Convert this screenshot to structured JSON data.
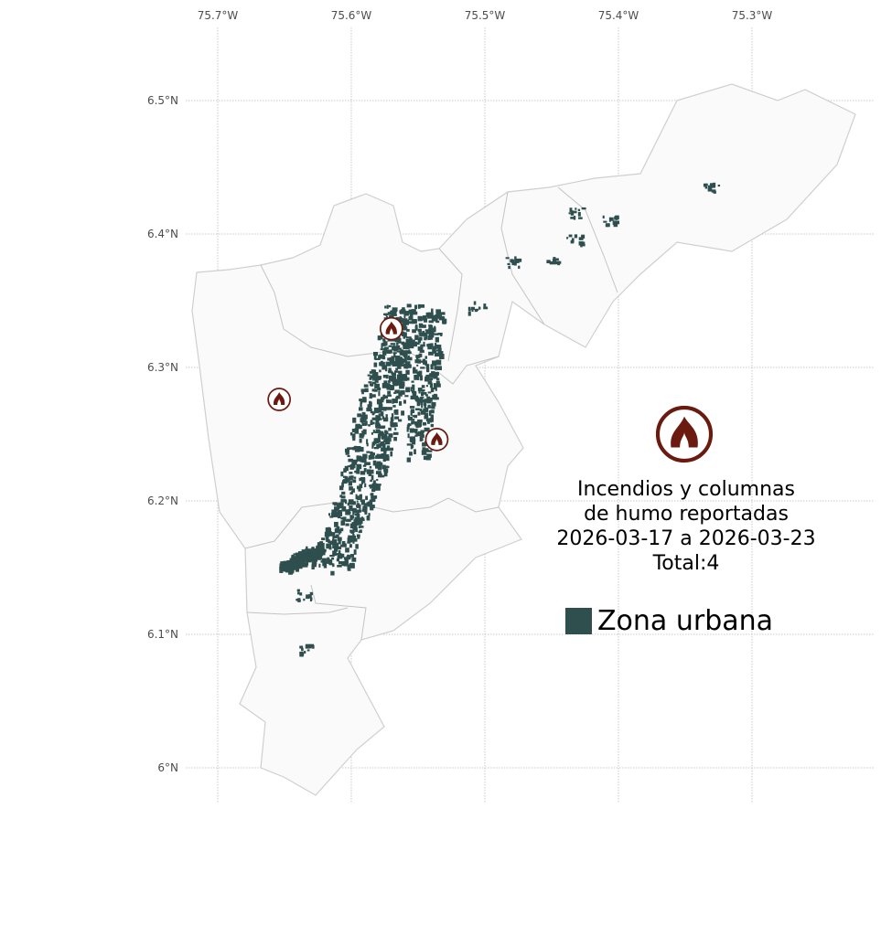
{
  "chart_data": {
    "type": "map",
    "axes": {
      "x_ticks": [
        "75.7°W",
        "75.6°W",
        "75.5°W",
        "75.4°W",
        "75.3°W"
      ],
      "x_values": [
        -75.7,
        -75.6,
        -75.5,
        -75.4,
        -75.3
      ],
      "y_ticks": [
        "6.5°N",
        "6.4°N",
        "6.3°N",
        "6.2°N",
        "6.1°N",
        "6°N"
      ],
      "y_values": [
        6.5,
        6.4,
        6.3,
        6.2,
        6.1,
        6.0
      ],
      "grid": true
    },
    "title_lines": [
      "Incendios y columnas",
      "de humo reportadas",
      "2026-03-17 a 2026-03-23",
      "Total:4"
    ],
    "fire_points": [
      {
        "lon": -75.57,
        "lat": 6.329
      },
      {
        "lon": -75.654,
        "lat": 6.276
      },
      {
        "lon": -75.536,
        "lat": 6.246
      }
    ],
    "legend": {
      "label": "Zona urbana",
      "color": "#2f4f4f",
      "placement": "right"
    },
    "colors": {
      "fire": "#6b1a10",
      "urban": "#2f4f4f",
      "region_fill": "#fafafa",
      "region_border": "#cccccc"
    },
    "icons": {
      "fire": "fire-icon"
    }
  }
}
